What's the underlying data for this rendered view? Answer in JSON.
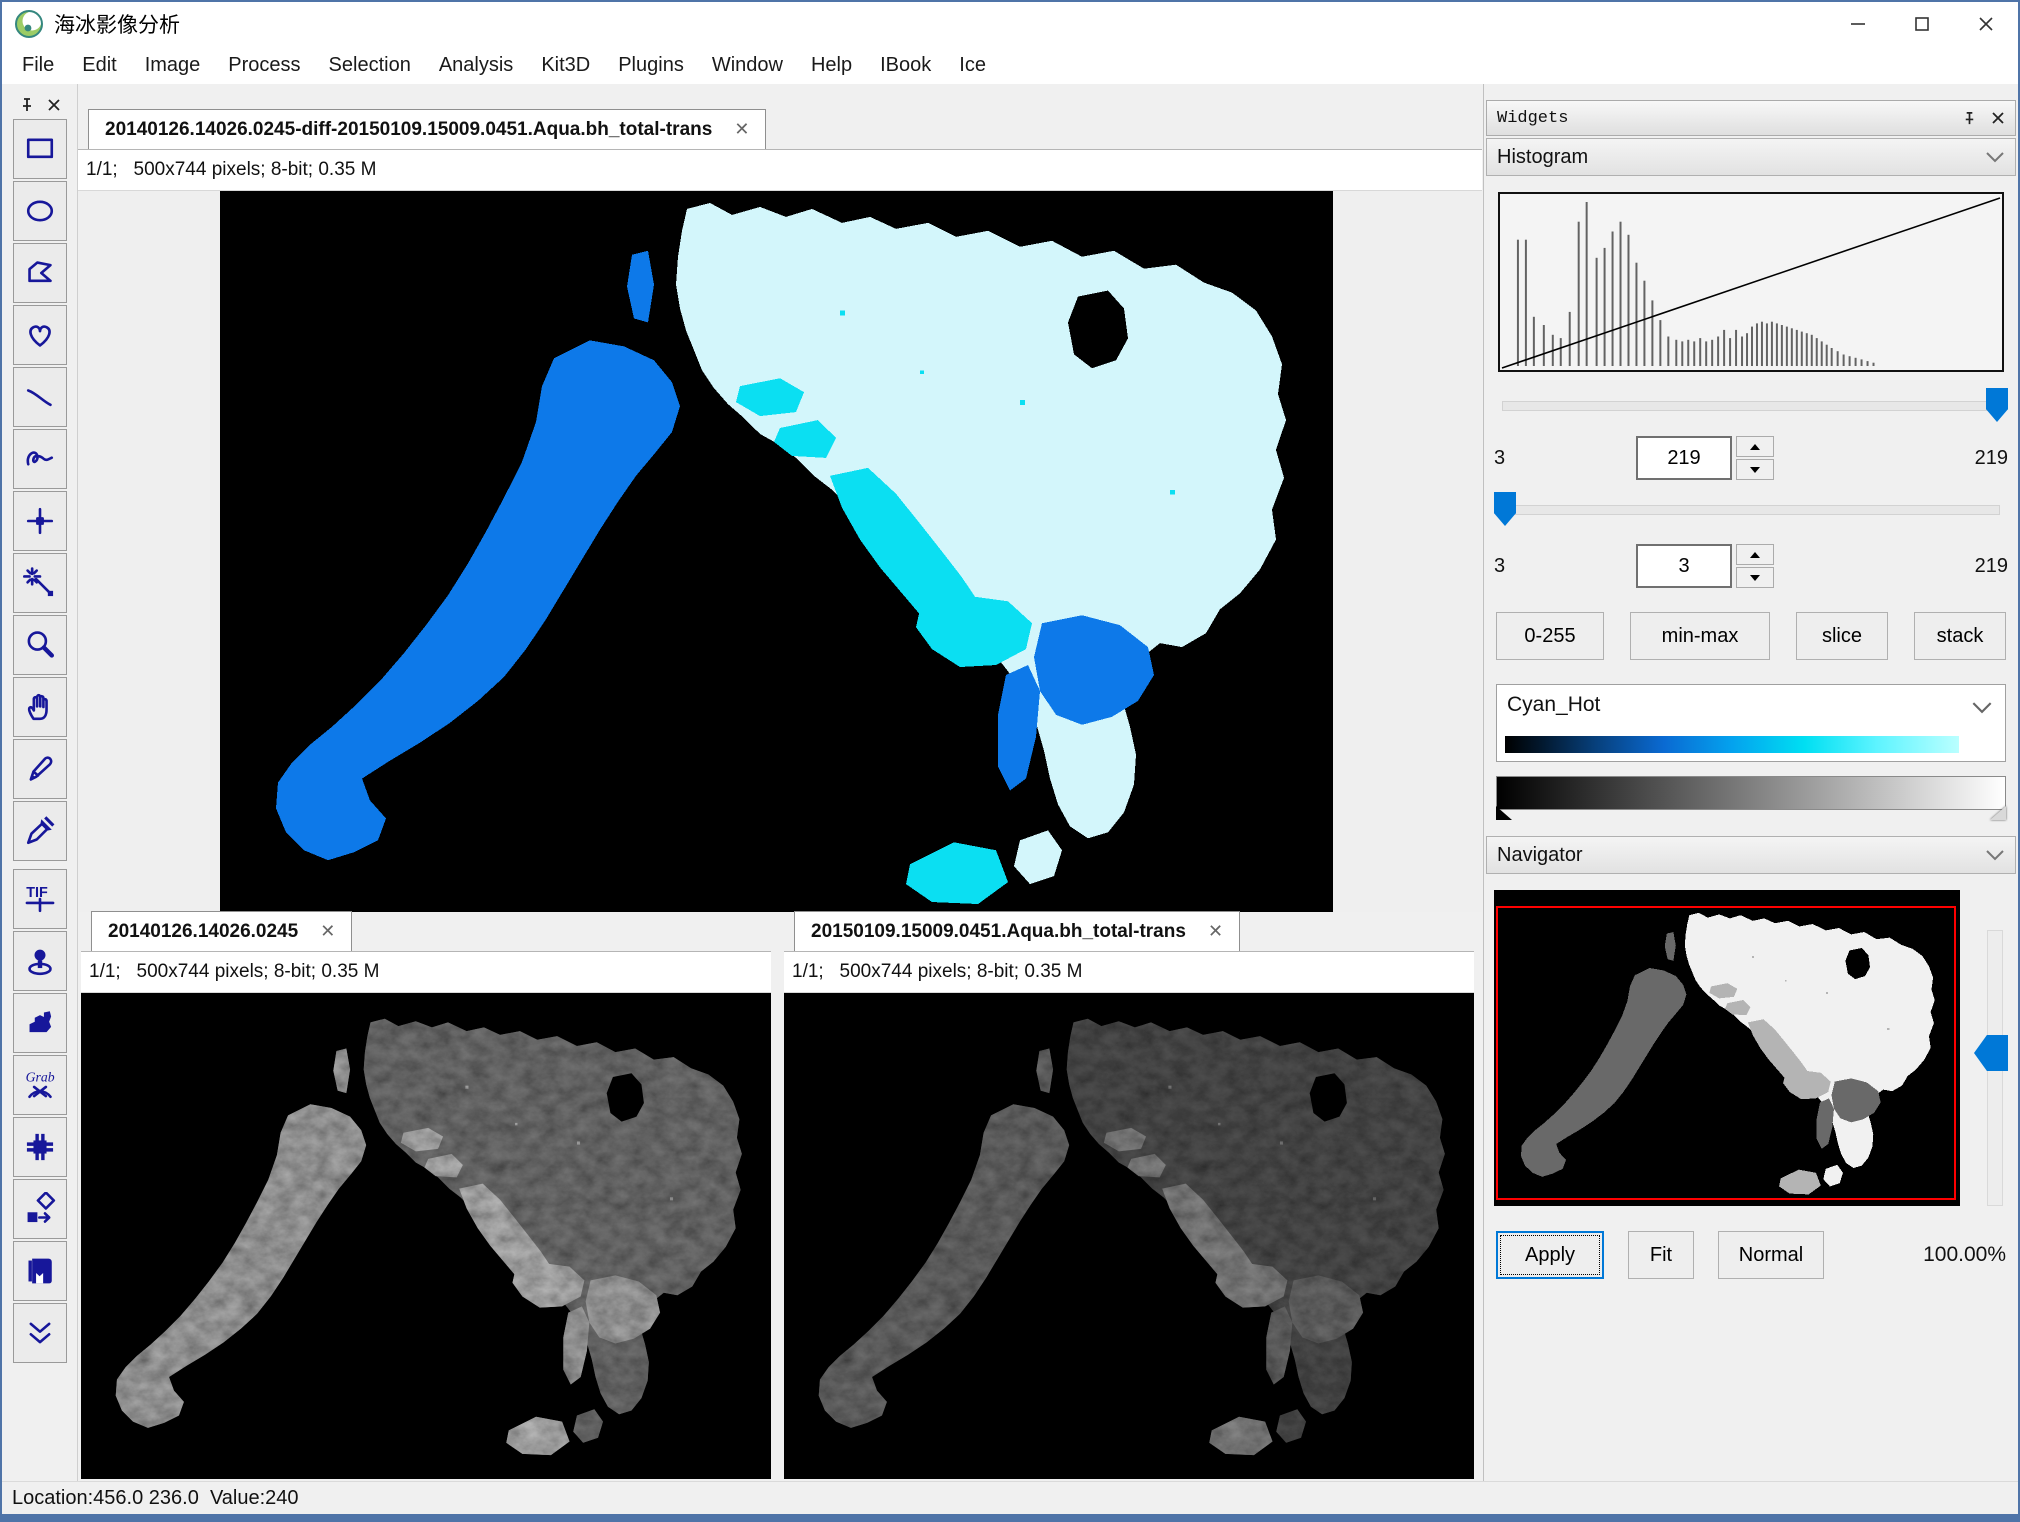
{
  "window": {
    "title": "海冰影像分析"
  },
  "icons": {
    "close_glyph": "✕",
    "pin": "pin-icon",
    "chevron_down": "chevron-down-icon"
  },
  "menu": [
    "File",
    "Edit",
    "Image",
    "Process",
    "Selection",
    "Analysis",
    "Kit3D",
    "Plugins",
    "Window",
    "Help",
    "IBook",
    "Ice"
  ],
  "toolbar": {
    "tools": [
      {
        "name": "rectangle"
      },
      {
        "name": "oval"
      },
      {
        "name": "polygon"
      },
      {
        "name": "freehand"
      },
      {
        "name": "line"
      },
      {
        "name": "freehand-line"
      },
      {
        "name": "point"
      },
      {
        "name": "wand"
      },
      {
        "name": "zoom"
      },
      {
        "name": "hand"
      },
      {
        "name": "pencil"
      },
      {
        "name": "dropper"
      },
      {
        "name": "tif",
        "label": "TIF"
      },
      {
        "name": "location"
      },
      {
        "name": "stamp"
      },
      {
        "name": "grab",
        "label": "Grab"
      },
      {
        "name": "grid"
      },
      {
        "name": "transform"
      },
      {
        "name": "album"
      },
      {
        "name": "more"
      }
    ]
  },
  "views": {
    "main": {
      "tab": "20140126.14026.0245-diff-20150109.15009.0451.Aqua.bh_total-trans",
      "info": "1/1;   500x744 pixels; 8-bit; 0.35 M"
    },
    "left": {
      "tab": "20140126.14026.0245",
      "info": "1/1;   500x744 pixels; 8-bit; 0.35 M"
    },
    "right": {
      "tab": "20150109.15009.0451.Aqua.bh_total-trans",
      "info": "1/1;   500x744 pixels; 8-bit; 0.35 M"
    }
  },
  "widgets": {
    "panel_title": "Widgets",
    "histogram": {
      "header": "Histogram",
      "max_row": {
        "min": "3",
        "value": "219",
        "max": "219"
      },
      "min_row": {
        "min": "3",
        "value": "3",
        "max": "219"
      },
      "buttons": [
        "0-255",
        "min-max",
        "slice",
        "stack"
      ],
      "lut_name": "Cyan_Hot",
      "bars": [
        [
          0.03,
          0.77
        ],
        [
          0.046,
          0.77
        ],
        [
          0.062,
          0.3
        ],
        [
          0.082,
          0.25
        ],
        [
          0.1,
          0.19
        ],
        [
          0.116,
          0.17
        ],
        [
          0.134,
          0.33
        ],
        [
          0.152,
          0.88
        ],
        [
          0.168,
          1.0
        ],
        [
          0.188,
          0.66
        ],
        [
          0.204,
          0.72
        ],
        [
          0.22,
          0.82
        ],
        [
          0.236,
          0.88
        ],
        [
          0.252,
          0.8
        ],
        [
          0.268,
          0.63
        ],
        [
          0.284,
          0.52
        ],
        [
          0.3,
          0.4
        ],
        [
          0.316,
          0.28
        ],
        [
          0.332,
          0.18
        ],
        [
          0.348,
          0.16
        ],
        [
          0.36,
          0.15
        ],
        [
          0.372,
          0.16
        ],
        [
          0.384,
          0.15
        ],
        [
          0.396,
          0.17
        ],
        [
          0.408,
          0.15
        ],
        [
          0.42,
          0.16
        ],
        [
          0.432,
          0.18
        ],
        [
          0.444,
          0.22
        ],
        [
          0.456,
          0.17
        ],
        [
          0.468,
          0.22
        ],
        [
          0.48,
          0.18
        ],
        [
          0.49,
          0.2
        ],
        [
          0.5,
          0.24
        ],
        [
          0.51,
          0.26
        ],
        [
          0.52,
          0.27
        ],
        [
          0.53,
          0.26
        ],
        [
          0.54,
          0.27
        ],
        [
          0.55,
          0.26
        ],
        [
          0.56,
          0.25
        ],
        [
          0.57,
          0.24
        ],
        [
          0.58,
          0.23
        ],
        [
          0.59,
          0.22
        ],
        [
          0.6,
          0.21
        ],
        [
          0.61,
          0.2
        ],
        [
          0.62,
          0.19
        ],
        [
          0.63,
          0.17
        ],
        [
          0.64,
          0.15
        ],
        [
          0.65,
          0.13
        ],
        [
          0.66,
          0.11
        ],
        [
          0.672,
          0.09
        ],
        [
          0.684,
          0.07
        ],
        [
          0.696,
          0.06
        ],
        [
          0.708,
          0.05
        ],
        [
          0.72,
          0.04
        ],
        [
          0.732,
          0.03
        ],
        [
          0.744,
          0.02
        ]
      ]
    },
    "navigator": {
      "header": "Navigator",
      "apply": "Apply",
      "fit": "Fit",
      "normal": "Normal",
      "zoom": "100.00%"
    }
  },
  "status": "Location:456.0 236.0  Value:240",
  "colors": {
    "accent_blue": "#0078d7",
    "frame_blue": "#4f74a8",
    "ice_pale": "#d3f6fb",
    "ice_cyan": "#0bdff2",
    "ice_blue": "#0d79e9",
    "navigator_border": "#ff0000",
    "tool_icon": "#17179a"
  }
}
